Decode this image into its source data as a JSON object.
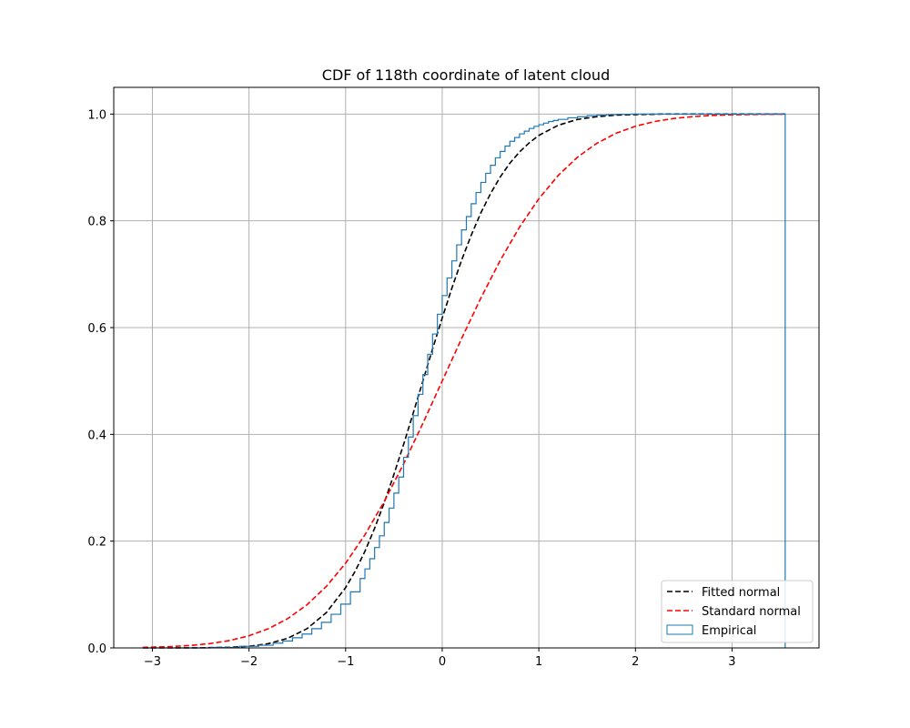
{
  "chart_data": {
    "type": "line",
    "title": "CDF of 118th coordinate of latent cloud",
    "xlabel": "",
    "ylabel": "",
    "xlim": [
      -3.4,
      3.9
    ],
    "ylim": [
      0.0,
      1.05
    ],
    "xticks": [
      -3,
      -2,
      -1,
      0,
      1,
      2,
      3
    ],
    "yticks": [
      0.0,
      0.2,
      0.4,
      0.6,
      0.8,
      1.0
    ],
    "xtick_labels": [
      "−3",
      "−2",
      "−1",
      "0",
      "1",
      "2",
      "3"
    ],
    "ytick_labels": [
      "0.0",
      "0.2",
      "0.4",
      "0.6",
      "0.8",
      "1.0"
    ],
    "grid": true,
    "legend_position": "lower-right",
    "series": [
      {
        "name": "Fitted normal",
        "kind": "line",
        "style": "dashed",
        "color": "#000000",
        "x": [
          -3.1,
          -2.8,
          -2.5,
          -2.2,
          -2.0,
          -1.8,
          -1.6,
          -1.4,
          -1.2,
          -1.0,
          -0.9,
          -0.8,
          -0.7,
          -0.6,
          -0.5,
          -0.4,
          -0.3,
          -0.2,
          -0.1,
          0.0,
          0.1,
          0.2,
          0.3,
          0.4,
          0.5,
          0.6,
          0.7,
          0.8,
          0.9,
          1.0,
          1.2,
          1.4,
          1.6,
          1.8,
          2.0,
          2.3,
          2.6,
          3.0,
          3.55
        ],
        "y": [
          0.0,
          0.0,
          0.0002,
          0.0012,
          0.003,
          0.008,
          0.018,
          0.036,
          0.066,
          0.113,
          0.144,
          0.181,
          0.224,
          0.272,
          0.325,
          0.381,
          0.44,
          0.5,
          0.56,
          0.618,
          0.674,
          0.726,
          0.773,
          0.815,
          0.851,
          0.882,
          0.908,
          0.929,
          0.946,
          0.96,
          0.979,
          0.99,
          0.995,
          0.998,
          0.999,
          1.0,
          1.0,
          1.0,
          1.0
        ]
      },
      {
        "name": "Standard normal",
        "kind": "line",
        "style": "dashed",
        "color": "#ff0000",
        "x": [
          -3.1,
          -2.8,
          -2.6,
          -2.4,
          -2.2,
          -2.0,
          -1.8,
          -1.6,
          -1.4,
          -1.2,
          -1.0,
          -0.8,
          -0.6,
          -0.4,
          -0.2,
          0.0,
          0.2,
          0.4,
          0.6,
          0.8,
          1.0,
          1.2,
          1.4,
          1.6,
          1.8,
          2.0,
          2.2,
          2.4,
          2.6,
          2.8,
          3.0,
          3.3,
          3.55
        ],
        "y": [
          0.001,
          0.0026,
          0.0047,
          0.0082,
          0.0139,
          0.0228,
          0.0359,
          0.0548,
          0.0808,
          0.1151,
          0.1587,
          0.2119,
          0.2743,
          0.3446,
          0.4207,
          0.5,
          0.5793,
          0.6554,
          0.7257,
          0.7881,
          0.8413,
          0.8849,
          0.9192,
          0.9452,
          0.9641,
          0.9772,
          0.9861,
          0.9918,
          0.9953,
          0.9974,
          0.9987,
          0.9995,
          0.9998
        ]
      },
      {
        "name": "Empirical",
        "kind": "step-histogram",
        "color": "#1f77b4",
        "x": [
          -3.1,
          -2.4,
          -2.1,
          -1.9,
          -1.75,
          -1.65,
          -1.55,
          -1.45,
          -1.35,
          -1.25,
          -1.15,
          -1.05,
          -0.95,
          -0.85,
          -0.8,
          -0.75,
          -0.7,
          -0.65,
          -0.6,
          -0.55,
          -0.5,
          -0.45,
          -0.4,
          -0.35,
          -0.3,
          -0.25,
          -0.2,
          -0.15,
          -0.1,
          -0.05,
          0.0,
          0.05,
          0.1,
          0.15,
          0.2,
          0.25,
          0.3,
          0.35,
          0.4,
          0.45,
          0.5,
          0.55,
          0.6,
          0.65,
          0.7,
          0.75,
          0.8,
          0.85,
          0.9,
          0.95,
          1.0,
          1.05,
          1.1,
          1.15,
          1.2,
          1.3,
          1.4,
          1.5,
          1.6,
          1.7,
          1.8,
          1.95,
          2.1,
          2.3,
          2.6,
          3.0,
          3.55
        ],
        "y": [
          0.0,
          0.001,
          0.003,
          0.005,
          0.009,
          0.013,
          0.019,
          0.026,
          0.036,
          0.048,
          0.063,
          0.082,
          0.105,
          0.13,
          0.148,
          0.167,
          0.188,
          0.21,
          0.235,
          0.262,
          0.29,
          0.32,
          0.357,
          0.395,
          0.435,
          0.475,
          0.512,
          0.55,
          0.588,
          0.625,
          0.66,
          0.693,
          0.725,
          0.755,
          0.783,
          0.808,
          0.832,
          0.853,
          0.872,
          0.889,
          0.904,
          0.918,
          0.93,
          0.94,
          0.949,
          0.956,
          0.963,
          0.968,
          0.973,
          0.977,
          0.98,
          0.983,
          0.986,
          0.988,
          0.99,
          0.993,
          0.995,
          0.997,
          0.998,
          0.999,
          0.9995,
          1.0,
          1.0,
          1.0,
          1.0,
          1.0,
          1.0
        ]
      }
    ]
  }
}
